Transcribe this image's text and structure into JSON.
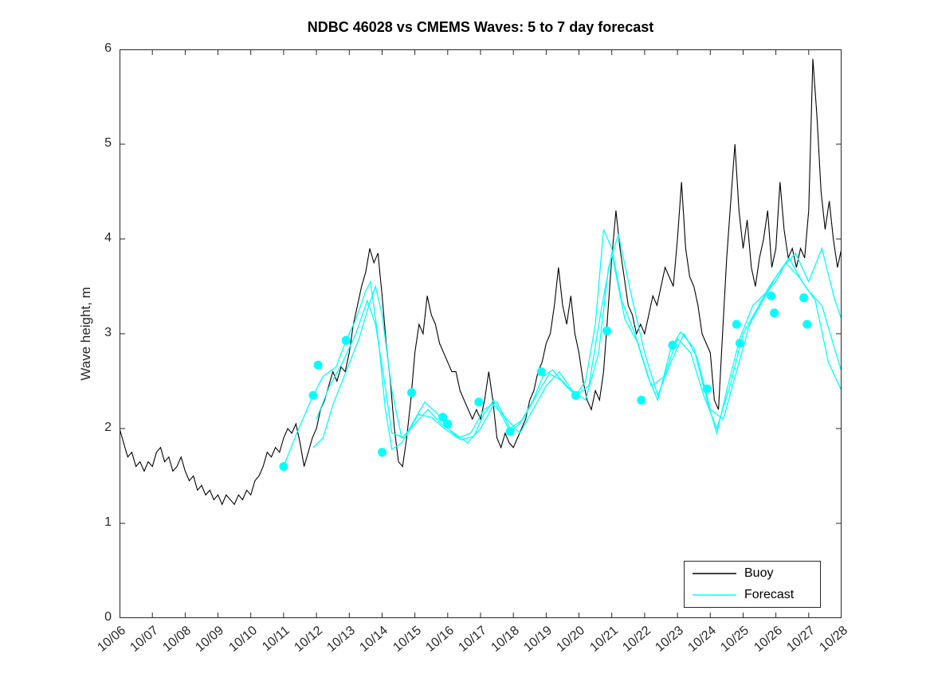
{
  "chart_data": {
    "type": "line",
    "title": "NDBC 46028 vs CMEMS Waves: 5 to 7 day forecast",
    "xlabel": "",
    "ylabel": "Wave height, m",
    "ylim": [
      0,
      6
    ],
    "xlim_days": [
      0,
      22
    ],
    "grid": false,
    "x_tick_labels": [
      "10/06",
      "10/07",
      "10/08",
      "10/09",
      "10/10",
      "10/11",
      "10/12",
      "10/13",
      "10/14",
      "10/15",
      "10/16",
      "10/17",
      "10/18",
      "10/19",
      "10/20",
      "10/21",
      "10/22",
      "10/23",
      "10/24",
      "10/25",
      "10/26",
      "10/27",
      "10/28"
    ],
    "y_tick_labels": [
      "0",
      "1",
      "2",
      "3",
      "4",
      "5",
      "6"
    ],
    "legend": {
      "position": "bottom-right",
      "entries": [
        {
          "label": "Buoy",
          "color": "#000000"
        },
        {
          "label": "Forecast",
          "color": "#00FFFF"
        }
      ]
    },
    "series": [
      {
        "name": "Buoy",
        "color": "#000000",
        "width": 1.1,
        "x_start_day": 0,
        "x_step_days": 0.125,
        "values": [
          2.0,
          1.85,
          1.7,
          1.75,
          1.6,
          1.65,
          1.55,
          1.65,
          1.6,
          1.75,
          1.8,
          1.65,
          1.7,
          1.55,
          1.6,
          1.7,
          1.55,
          1.45,
          1.5,
          1.35,
          1.4,
          1.3,
          1.35,
          1.25,
          1.3,
          1.2,
          1.3,
          1.25,
          1.2,
          1.3,
          1.25,
          1.35,
          1.3,
          1.45,
          1.5,
          1.6,
          1.75,
          1.7,
          1.8,
          1.75,
          1.9,
          2.0,
          1.95,
          2.05,
          1.85,
          1.6,
          1.75,
          1.9,
          2.0,
          2.2,
          2.3,
          2.45,
          2.6,
          2.5,
          2.65,
          2.6,
          2.8,
          3.1,
          3.3,
          3.5,
          3.65,
          3.9,
          3.75,
          3.85,
          3.4,
          2.9,
          2.5,
          2.0,
          1.65,
          1.6,
          1.9,
          2.3,
          2.8,
          3.1,
          3.0,
          3.4,
          3.2,
          3.1,
          2.9,
          2.8,
          2.7,
          2.6,
          2.6,
          2.4,
          2.3,
          2.2,
          2.1,
          2.2,
          2.1,
          2.3,
          2.6,
          2.3,
          1.9,
          1.8,
          1.95,
          1.85,
          1.8,
          1.9,
          2.0,
          2.1,
          2.3,
          2.4,
          2.6,
          2.7,
          2.9,
          3.0,
          3.3,
          3.7,
          3.3,
          3.1,
          3.4,
          3.0,
          2.8,
          2.5,
          2.3,
          2.2,
          2.4,
          2.3,
          2.6,
          3.2,
          3.8,
          4.3,
          3.9,
          3.6,
          3.3,
          3.2,
          3.0,
          3.1,
          3.0,
          3.2,
          3.4,
          3.3,
          3.5,
          3.7,
          3.6,
          3.5,
          4.0,
          4.6,
          3.9,
          3.6,
          3.5,
          3.3,
          3.0,
          2.9,
          2.8,
          2.3,
          2.2,
          3.0,
          3.8,
          4.4,
          5.0,
          4.3,
          3.9,
          4.2,
          3.7,
          3.5,
          3.8,
          4.0,
          4.3,
          3.7,
          3.9,
          4.6,
          4.1,
          3.8,
          3.9,
          3.7,
          3.9,
          3.8,
          4.3,
          5.9,
          5.3,
          4.5,
          4.1,
          4.4,
          4.0,
          3.7,
          3.9
        ]
      },
      {
        "name": "Forecast run 1",
        "color": "#00FFFF",
        "width": 1.3,
        "x": [
          5.0,
          5.4,
          5.9,
          6.2,
          6.6,
          6.9,
          7.2,
          7.5,
          7.65,
          7.9,
          8.1,
          8.3,
          8.6,
          9.0,
          9.3,
          9.7,
          10.0,
          10.4,
          10.8,
          11.1,
          11.4,
          11.9,
          12.2,
          12.6,
          12.9,
          13.2,
          13.6,
          13.9,
          14.2,
          14.5,
          14.75,
          15.0,
          15.3,
          15.7,
          16.1,
          16.4,
          16.8,
          17.1,
          17.5,
          17.9,
          18.2,
          18.5,
          18.9,
          19.3,
          19.6,
          20.0,
          20.3,
          20.7,
          21.0,
          21.4,
          21.7,
          22.0
        ],
        "y": [
          1.6,
          1.95,
          2.35,
          2.55,
          2.65,
          2.93,
          3.15,
          3.45,
          3.55,
          2.9,
          2.2,
          1.78,
          1.85,
          2.1,
          2.28,
          2.15,
          2.0,
          1.88,
          1.92,
          2.15,
          2.3,
          1.97,
          2.05,
          2.3,
          2.55,
          2.62,
          2.45,
          2.35,
          2.5,
          3.1,
          4.1,
          3.9,
          3.35,
          3.0,
          2.55,
          2.3,
          2.85,
          3.02,
          2.85,
          2.3,
          1.95,
          2.4,
          2.95,
          3.3,
          3.4,
          3.55,
          3.75,
          3.6,
          3.45,
          3.3,
          2.95,
          2.6
        ]
      },
      {
        "name": "Forecast run 2",
        "color": "#00FFFF",
        "width": 1.3,
        "x": [
          5.9,
          6.2,
          6.5,
          6.9,
          7.3,
          7.6,
          7.8,
          8.0,
          8.3,
          8.6,
          9.0,
          9.4,
          9.8,
          10.2,
          10.6,
          11.0,
          11.4,
          11.8,
          12.2,
          12.6,
          13.0,
          13.4,
          13.8,
          14.2,
          14.6,
          14.9,
          15.2,
          15.6,
          16.0,
          16.4,
          16.8,
          17.2,
          17.6,
          18.0,
          18.4,
          18.8,
          19.2,
          19.6,
          20.0,
          20.4,
          20.8,
          21.2,
          21.6,
          22.0
        ],
        "y": [
          1.8,
          1.9,
          2.25,
          2.6,
          2.95,
          3.3,
          3.5,
          3.2,
          2.4,
          1.9,
          2.05,
          2.2,
          2.05,
          1.95,
          1.85,
          2.0,
          2.25,
          2.1,
          1.95,
          2.2,
          2.45,
          2.6,
          2.4,
          2.3,
          2.8,
          3.7,
          4.05,
          3.4,
          2.8,
          2.35,
          2.7,
          3.0,
          2.75,
          2.2,
          2.1,
          2.6,
          3.1,
          3.35,
          3.6,
          3.8,
          3.55,
          3.35,
          2.7,
          2.4
        ]
      },
      {
        "name": "Forecast run 3",
        "color": "#00FFFF",
        "width": 1.3,
        "x": [
          6.0,
          6.4,
          6.8,
          7.2,
          7.55,
          7.8,
          8.05,
          8.3,
          8.7,
          9.1,
          9.5,
          9.9,
          10.3,
          10.7,
          11.1,
          11.5,
          11.9,
          12.3,
          12.7,
          13.1,
          13.5,
          13.9,
          14.3,
          14.7,
          15.0,
          15.4,
          15.8,
          16.2,
          16.6,
          17.0,
          17.4,
          17.8,
          18.2,
          18.6,
          19.0,
          19.4,
          19.8,
          20.2,
          20.6,
          21.0,
          21.4,
          21.8,
          22.1
        ],
        "y": [
          2.1,
          2.45,
          2.7,
          3.0,
          3.35,
          3.1,
          2.55,
          1.95,
          1.9,
          2.15,
          2.12,
          2.0,
          1.9,
          1.95,
          2.2,
          2.28,
          2.0,
          2.1,
          2.35,
          2.58,
          2.5,
          2.35,
          2.45,
          3.3,
          3.85,
          3.15,
          2.9,
          2.45,
          2.55,
          2.95,
          2.8,
          2.35,
          2.0,
          2.45,
          3.0,
          3.25,
          3.5,
          3.7,
          3.85,
          3.55,
          3.9,
          3.35,
          3.05
        ]
      }
    ],
    "markers": {
      "name": "forecast-start-points",
      "color": "#00FFFF",
      "radius": 5.5,
      "points": [
        [
          5.0,
          1.6
        ],
        [
          5.9,
          2.35
        ],
        [
          6.05,
          2.67
        ],
        [
          6.9,
          2.93
        ],
        [
          8.0,
          1.75
        ],
        [
          8.9,
          2.38
        ],
        [
          9.85,
          2.12
        ],
        [
          10.0,
          2.05
        ],
        [
          10.95,
          2.28
        ],
        [
          11.9,
          1.97
        ],
        [
          12.85,
          2.6
        ],
        [
          13.9,
          2.35
        ],
        [
          14.85,
          3.03
        ],
        [
          15.9,
          2.3
        ],
        [
          16.85,
          2.88
        ],
        [
          17.9,
          2.42
        ],
        [
          18.8,
          3.1
        ],
        [
          18.9,
          2.9
        ],
        [
          19.85,
          3.4
        ],
        [
          19.95,
          3.22
        ],
        [
          20.85,
          3.38
        ],
        [
          20.95,
          3.1
        ]
      ]
    },
    "axis_color": "#262626"
  }
}
